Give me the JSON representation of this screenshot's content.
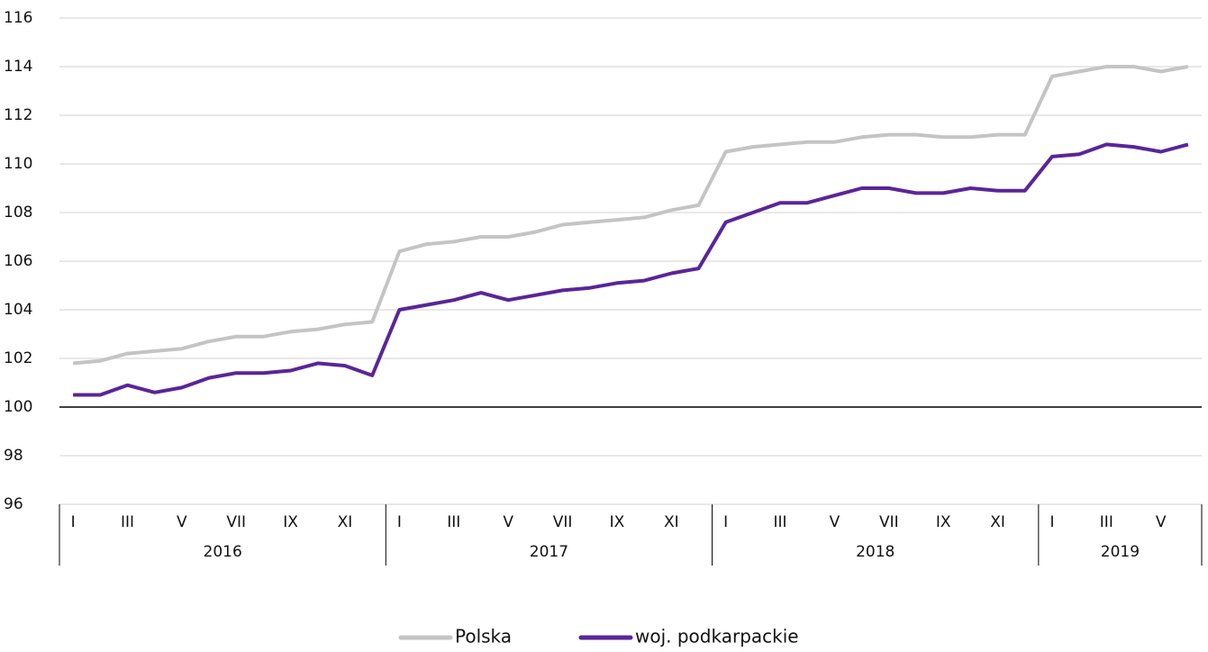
{
  "chart_data": {
    "type": "line",
    "categories": [
      "I",
      null,
      "III",
      null,
      "V",
      null,
      "VII",
      null,
      "IX",
      null,
      "XI",
      null,
      "I",
      null,
      "III",
      null,
      "V",
      null,
      "VII",
      null,
      "IX",
      null,
      "XI",
      null,
      "I",
      null,
      "III",
      null,
      "V",
      null,
      "VII",
      null,
      "IX",
      null,
      "XI",
      null,
      "I",
      null,
      "III",
      null,
      "V",
      null
    ],
    "groups": [
      "2016",
      "2017",
      "2018",
      "2019"
    ],
    "series": [
      {
        "name": "Polska",
        "color": "#c4c4c4",
        "values": [
          101.8,
          101.9,
          102.2,
          102.3,
          102.4,
          102.7,
          102.9,
          102.9,
          103.1,
          103.2,
          103.4,
          103.5,
          106.4,
          106.7,
          106.8,
          107.0,
          107.0,
          107.2,
          107.5,
          107.6,
          107.7,
          107.8,
          108.1,
          108.3,
          110.5,
          110.7,
          110.8,
          110.9,
          110.9,
          111.1,
          111.2,
          111.2,
          111.1,
          111.1,
          111.2,
          111.2,
          113.6,
          113.8,
          114.0,
          114.0,
          113.8,
          114.0
        ]
      },
      {
        "name": "woj. podkarpackie",
        "color": "#5a2599",
        "values": [
          100.5,
          100.5,
          100.9,
          100.6,
          100.8,
          101.2,
          101.4,
          101.4,
          101.5,
          101.8,
          101.7,
          101.3,
          104.0,
          104.2,
          104.4,
          104.7,
          104.4,
          104.6,
          104.8,
          104.9,
          105.1,
          105.2,
          105.5,
          105.7,
          107.6,
          108.0,
          108.4,
          108.4,
          108.7,
          109.0,
          109.0,
          108.8,
          108.8,
          109.0,
          108.9,
          108.9,
          110.3,
          110.4,
          110.8,
          110.7,
          110.5,
          110.8
        ]
      }
    ],
    "ylim": [
      96,
      116
    ],
    "yticks": [
      96,
      98,
      100,
      102,
      104,
      106,
      108,
      110,
      112,
      114,
      116
    ],
    "reference_line": 100,
    "grid": true,
    "legend": "bottom"
  }
}
